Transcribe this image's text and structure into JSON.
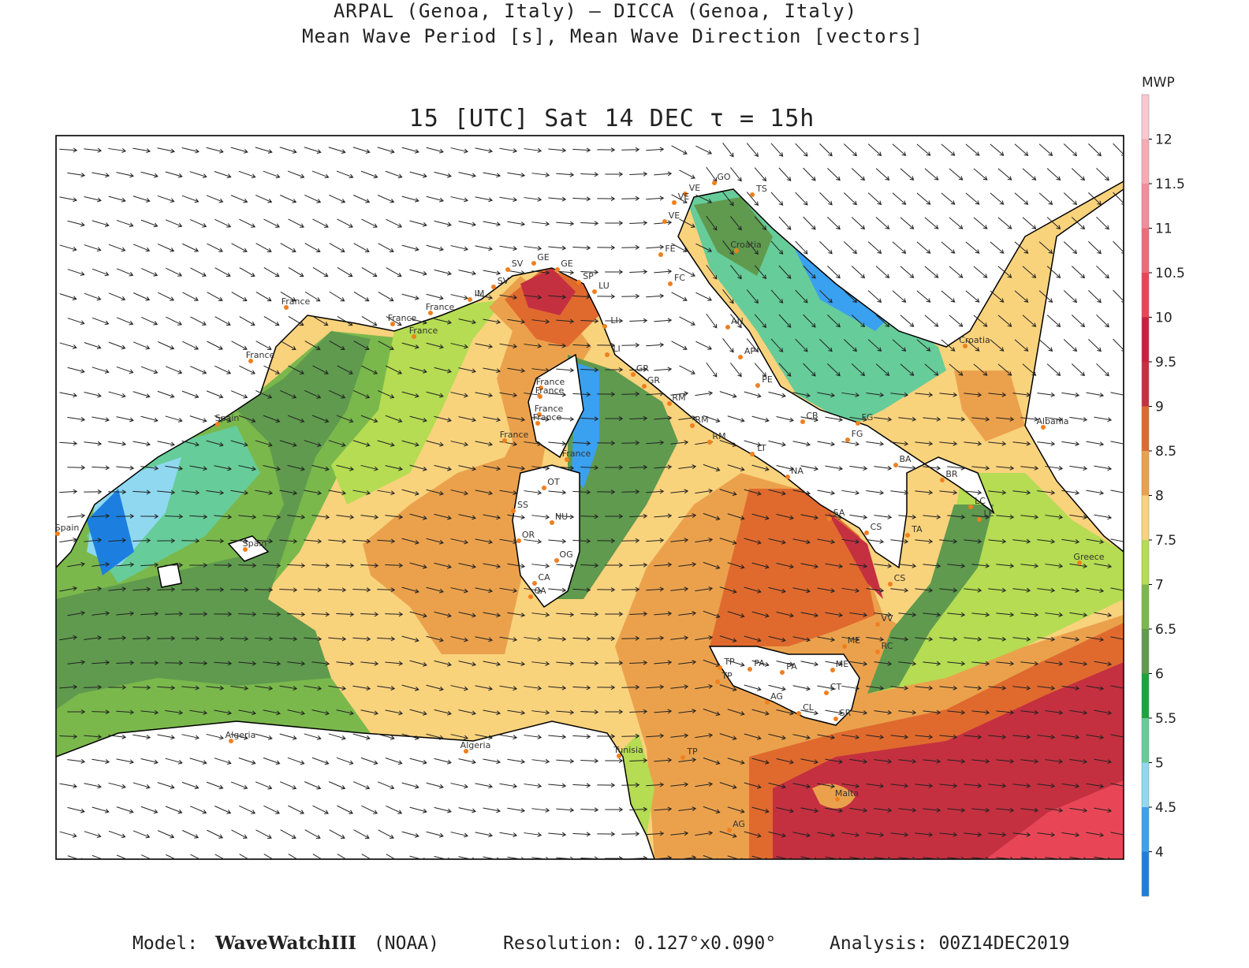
{
  "header": {
    "line1": "ARPAL (Genoa, Italy)  —  DICCA (Genoa, Italy)",
    "line2": "Mean Wave Period [s], Mean Wave Direction [vectors]"
  },
  "map": {
    "title": "15 [UTC] Sat 14 DEC  τ = 15h",
    "places": [
      "France",
      "France",
      "France",
      "France",
      "France",
      "Spain",
      "Spain",
      "Spain",
      "IM",
      "SV",
      "SV",
      "GE",
      "GE",
      "SP",
      "LU",
      "LI",
      "LI",
      "France",
      "France",
      "France",
      "France",
      "France",
      "France",
      "GR",
      "GR",
      "RM",
      "RM",
      "RM",
      "OT",
      "SS",
      "NU",
      "OR",
      "OG",
      "CA",
      "CA",
      "LT",
      "NA",
      "SA",
      "CS",
      "CS",
      "VV",
      "ME",
      "RC",
      "TP",
      "PA",
      "PA",
      "ME",
      "TP",
      "CT",
      "AG",
      "CL",
      "SR",
      "Algeria",
      "Algeria",
      "Tunisia",
      "TP",
      "AG",
      "Malta",
      "VE",
      "VE",
      "VE",
      "GO",
      "TS",
      "FE",
      "FC",
      "AN",
      "AP",
      "PE",
      "CB",
      "FG",
      "FG",
      "BA",
      "BR",
      "LC",
      "LE",
      "TA",
      "Croatia",
      "Croatia",
      "Albania",
      "Greece"
    ]
  },
  "colorbar": {
    "label": "MWP",
    "range": [
      3.5,
      12.5
    ],
    "ticks": [
      4,
      4.5,
      5,
      5.5,
      6,
      6.5,
      7,
      7.5,
      8,
      8.5,
      9,
      9.5,
      10,
      10.5,
      11,
      11.5,
      12
    ],
    "colors": [
      "#1c7fe0",
      "#3aa0f0",
      "#8fd8f0",
      "#66cc99",
      "#17a53c",
      "#5f9a4e",
      "#7ab84c",
      "#b5dc52",
      "#f9d27c",
      "#eba14c",
      "#e06a2e",
      "#c43040",
      "#c8203e",
      "#e84656",
      "#f06a78",
      "#f48c9a",
      "#f8aab4",
      "#fcc8d0"
    ]
  },
  "footer": {
    "model_label": "Model:",
    "model": "WaveWatchIII",
    "model_source": "(NOAA)",
    "resolution": "Resolution: 0.127°x0.090°",
    "analysis": "Analysis: 00Z14DEC2019"
  }
}
